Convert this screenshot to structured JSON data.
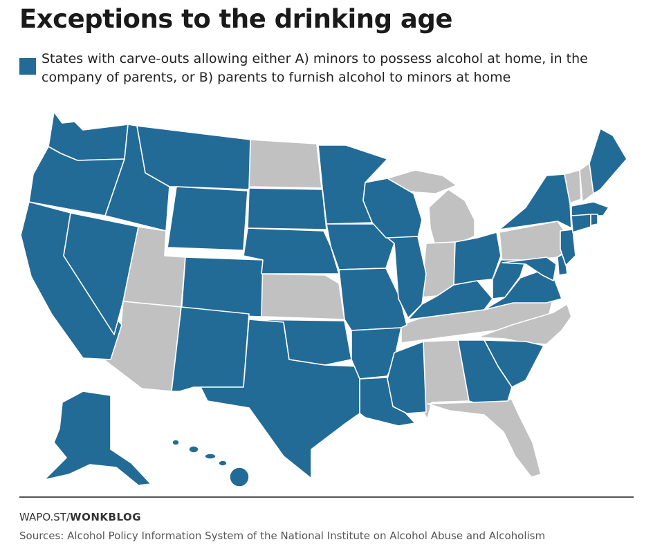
{
  "title": "Exceptions to the drinking age",
  "legend": {
    "label": "States with carve-outs allowing either A) minors to possess alcohol at home, in the company of parents, or B) parents to furnish alcohol to minors at home",
    "color": "#236b97"
  },
  "colors": {
    "carve_out": "#236b97",
    "no_carve_out": "#c1c1c1"
  },
  "states_with_carve_out": [
    "WA",
    "OR",
    "CA",
    "NV",
    "ID",
    "MT",
    "WY",
    "CO",
    "NM",
    "TX",
    "OK",
    "NE",
    "SD",
    "MN",
    "IA",
    "MO",
    "AR",
    "LA",
    "MS",
    "WI",
    "IL",
    "KY",
    "OH",
    "WV",
    "VA",
    "MD",
    "DE",
    "NJ",
    "NY",
    "CT",
    "RI",
    "MA",
    "ME",
    "SC",
    "GA",
    "AK",
    "HI"
  ],
  "states_without_carve_out": [
    "UT",
    "AZ",
    "ND",
    "KS",
    "MI",
    "IN",
    "TN",
    "AL",
    "FL",
    "NC",
    "PA",
    "VT",
    "NH",
    "DC"
  ],
  "footer": {
    "credit_prefix": "WAPO.ST/",
    "credit_name": "WONKBLOG",
    "sources": "Sources: Alcohol Policy Information System of the National Institute on Alcohol Abuse and Alcoholism"
  }
}
